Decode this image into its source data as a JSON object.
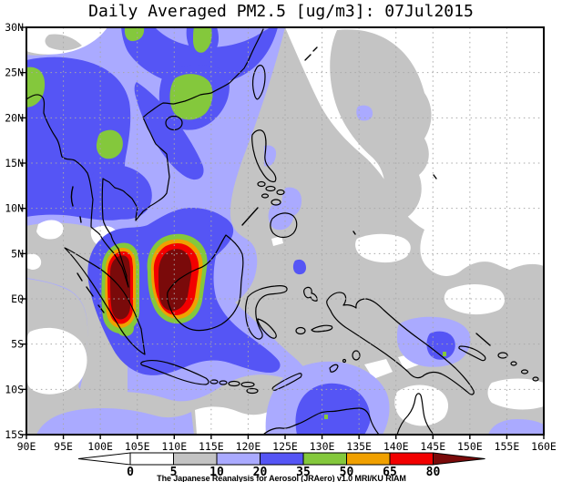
{
  "title": "Daily Averaged PM2.5 [ug/m3]: 07Jul2015",
  "axes": {
    "lat_labels": [
      "30N",
      "25N",
      "20N",
      "15N",
      "10N",
      "5N",
      "EQ",
      "5S",
      "10S",
      "15S"
    ],
    "lon_labels": [
      "90E",
      "95E",
      "100E",
      "105E",
      "110E",
      "115E",
      "120E",
      "125E",
      "130E",
      "135E",
      "140E",
      "145E",
      "150E",
      "155E",
      "160E"
    ]
  },
  "colorbar": {
    "levels": [
      "0",
      "5",
      "10",
      "20",
      "35",
      "50",
      "65",
      "80"
    ],
    "segment_colors": [
      "#ffffff",
      "#c3c3c3",
      "#aaaaff",
      "#5555f5",
      "#84c83c",
      "#f0a000",
      "#f20000"
    ],
    "arrow_left_color": "#ffffff",
    "arrow_right_color": "#7a0a0a",
    "caption": "The Japanese Reanalysis for Aerosol (JRAero) v1.0 MRI/KU RIAM"
  },
  "palette": {
    "white": "#ffffff",
    "gray": "#c4c4c4",
    "lav": "#aaaaff",
    "blue": "#5555f5",
    "green": "#84c83c",
    "orange": "#f0a000",
    "red": "#f20000",
    "darkred": "#7a0a0a",
    "coast": "#000000",
    "grid": "#a8a8a8",
    "frame": "#000000"
  },
  "chart_data": {
    "type": "heatmap",
    "title": "Daily Averaged PM2.5 [ug/m3]: 07Jul2015",
    "variable": "PM2.5",
    "units": "ug/m3",
    "date": "07Jul2015",
    "projection": "lat-lon",
    "lon_range": [
      90,
      160
    ],
    "lat_range": [
      -15,
      30
    ],
    "lon_tick_step_deg": 5,
    "lat_tick_step_deg": 5,
    "grid": "dotted",
    "legend_position": "bottom",
    "contour_levels": [
      0,
      5,
      10,
      20,
      35,
      50,
      65,
      80
    ],
    "level_colors": [
      "#ffffff",
      "#c3c3c3",
      "#aaaaff",
      "#5555f5",
      "#84c83c",
      "#f0a000",
      "#f20000",
      "#7a0a0a"
    ],
    "features": [
      {
        "name": "haze-hotspot-sumatra",
        "lon": 101.8,
        "lat": 0.5,
        "value": ">80"
      },
      {
        "name": "haze-hotspot-west-borneo",
        "lon": 110.5,
        "lat": 2.0,
        "value": ">80"
      },
      {
        "name": "south-china-band",
        "lon": 109,
        "lat": 23,
        "value": "35-50"
      },
      {
        "name": "myanmar-left-edge-patch",
        "lon": 90.5,
        "lat": 23,
        "value": "35-50"
      },
      {
        "name": "thailand-laos-patch",
        "lon": 100.5,
        "lat": 17,
        "value": "35-50"
      },
      {
        "name": "bay-of-bengal-indochina-plume",
        "lon": 95,
        "lat": 15,
        "value": "20-35"
      },
      {
        "name": "java-sea-plume",
        "lon": 112,
        "lat": -6,
        "value": "20-35"
      },
      {
        "name": "new-guinea-plume",
        "lon": 145.5,
        "lat": -4.5,
        "value": "20-35"
      },
      {
        "name": "timor-sea-plume",
        "lon": 130,
        "lat": -13,
        "value": "20-35"
      },
      {
        "name": "clean-western-pacific",
        "lon": 150,
        "lat": 18,
        "value": "0-5"
      },
      {
        "name": "clean-south-indian-ocean",
        "lon": 93,
        "lat": -7,
        "value": "0-5"
      }
    ]
  }
}
